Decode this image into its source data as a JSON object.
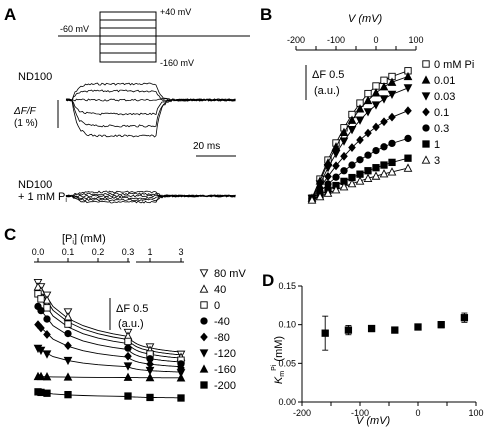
{
  "panels": {
    "A": {
      "letter": "A",
      "protocol": {
        "hold_label": "-60 mV",
        "top_label": "+40 mV",
        "bottom_label": "-160 mV",
        "steps_mv": [
          40,
          0,
          -40,
          -80,
          -120,
          -160
        ]
      },
      "trace1_label": "ND100",
      "trace2_label_line1": "ND100",
      "trace2_label_line2": "+ 1 mM P",
      "trace2_label_sub": "i",
      "yscale_label_line1": "ΔF/F",
      "yscale_label_line2": "(1 %)",
      "time_scale_label": "20 ms"
    },
    "B": {
      "letter": "B",
      "xlabel": "V (mV)",
      "xticks": [
        "-200",
        "-100",
        "0",
        "100"
      ],
      "scale_label_line1": "ΔF 0.5",
      "scale_label_line2": "(a.u.)"
    },
    "C": {
      "letter": "C",
      "xlabel": "[P",
      "xlabel_sub": "i",
      "xlabel_end": "] (mM)",
      "xticks_left": [
        "0.0",
        "0.1",
        "0.2",
        "0.3"
      ],
      "xticks_right": [
        "1",
        "3"
      ],
      "scale_label_line1": "ΔF 0.5",
      "scale_label_line2": "(a.u.)"
    },
    "D": {
      "letter": "D",
      "ylabel_main": "K",
      "ylabel_sub": "m",
      "ylabel_sup": "Pi",
      "ylabel_end": " (mM)",
      "xlabel": "V (mV)",
      "yticks": [
        "0.00",
        "0.05",
        "0.10",
        "0.15"
      ],
      "xticks": [
        "-200",
        "-100",
        "0",
        "100"
      ]
    }
  },
  "chart_data": [
    {
      "panel": "B",
      "type": "line",
      "xlabel": "V (mV)",
      "xlim": [
        -200,
        100
      ],
      "series": [
        {
          "name": "0 mM Pi",
          "marker": "open-square",
          "x": [
            -160,
            -140,
            -120,
            -100,
            -80,
            -60,
            -40,
            -20,
            0,
            20,
            40,
            80
          ],
          "y": [
            0.05,
            0.55,
            1.05,
            1.5,
            1.9,
            2.25,
            2.55,
            2.8,
            3.0,
            3.15,
            3.25,
            3.4
          ]
        },
        {
          "name": "0.01",
          "marker": "filled-triangle-up",
          "x": [
            -160,
            -140,
            -120,
            -100,
            -80,
            -60,
            -40,
            -20,
            0,
            20,
            40,
            80
          ],
          "y": [
            0.05,
            0.5,
            0.98,
            1.4,
            1.78,
            2.1,
            2.4,
            2.62,
            2.82,
            2.98,
            3.1,
            3.25
          ]
        },
        {
          "name": "0.03",
          "marker": "filled-triangle-down",
          "x": [
            -160,
            -140,
            -120,
            -100,
            -80,
            -60,
            -40,
            -20,
            0,
            20,
            40,
            80
          ],
          "y": [
            0.04,
            0.42,
            0.85,
            1.22,
            1.55,
            1.85,
            2.1,
            2.32,
            2.5,
            2.66,
            2.78,
            2.95
          ]
        },
        {
          "name": "0.1",
          "marker": "filled-diamond",
          "x": [
            -160,
            -140,
            -120,
            -100,
            -80,
            -60,
            -40,
            -20,
            0,
            20,
            40,
            80
          ],
          "y": [
            0.03,
            0.32,
            0.62,
            0.9,
            1.15,
            1.38,
            1.58,
            1.76,
            1.92,
            2.06,
            2.18,
            2.35
          ]
        },
        {
          "name": "0.3",
          "marker": "filled-circle",
          "x": [
            -160,
            -140,
            -120,
            -100,
            -80,
            -60,
            -40,
            -20,
            0,
            20,
            40,
            80
          ],
          "y": [
            0.02,
            0.22,
            0.42,
            0.6,
            0.77,
            0.92,
            1.06,
            1.18,
            1.3,
            1.4,
            1.49,
            1.62
          ]
        },
        {
          "name": "1",
          "marker": "filled-square",
          "x": [
            -160,
            -140,
            -120,
            -100,
            -80,
            -60,
            -40,
            -20,
            0,
            20,
            40,
            80
          ],
          "y": [
            0.01,
            0.13,
            0.26,
            0.38,
            0.49,
            0.59,
            0.68,
            0.77,
            0.85,
            0.92,
            0.99,
            1.1
          ]
        },
        {
          "name": "3",
          "marker": "open-triangle-up",
          "x": [
            -160,
            -140,
            -120,
            -100,
            -80,
            -60,
            -40,
            -20,
            0,
            20,
            40,
            80
          ],
          "y": [
            0.0,
            0.09,
            0.18,
            0.27,
            0.35,
            0.43,
            0.5,
            0.57,
            0.63,
            0.69,
            0.74,
            0.84
          ]
        }
      ]
    },
    {
      "panel": "C",
      "type": "line",
      "xlabel": "[Pi] (mM)",
      "x": [
        0,
        0.01,
        0.03,
        0.1,
        0.3,
        1,
        3
      ],
      "series": [
        {
          "name": "80 mV",
          "marker": "open-triangle-down",
          "y": [
            3.4,
            3.25,
            2.95,
            2.35,
            1.62,
            1.1,
            0.84
          ]
        },
        {
          "name": "40",
          "marker": "open-triangle-up",
          "y": [
            3.25,
            3.1,
            2.78,
            2.18,
            1.49,
            0.99,
            0.74
          ]
        },
        {
          "name": "0",
          "marker": "open-square",
          "y": [
            3.0,
            2.82,
            2.5,
            1.92,
            1.3,
            0.85,
            0.63
          ]
        },
        {
          "name": "-40",
          "marker": "filled-circle",
          "y": [
            2.55,
            2.4,
            2.1,
            1.58,
            1.06,
            0.68,
            0.5
          ]
        },
        {
          "name": "-80",
          "marker": "filled-diamond",
          "y": [
            1.9,
            1.78,
            1.55,
            1.15,
            0.77,
            0.49,
            0.35
          ]
        },
        {
          "name": "-120",
          "marker": "filled-triangle-down",
          "y": [
            1.05,
            0.98,
            0.85,
            0.62,
            0.42,
            0.26,
            0.18
          ]
        },
        {
          "name": "-160",
          "marker": "filled-triangle-up",
          "y": [
            0.05,
            0.05,
            0.04,
            0.03,
            0.02,
            0.01,
            0.0
          ]
        },
        {
          "name": "-200",
          "marker": "filled-square",
          "y": [
            -0.5,
            -0.52,
            -0.55,
            -0.6,
            -0.65,
            -0.7,
            -0.72
          ]
        }
      ]
    },
    {
      "panel": "D",
      "type": "scatter",
      "xlabel": "V (mV)",
      "ylabel": "Km Pi (mM)",
      "xlim": [
        -200,
        100
      ],
      "ylim": [
        0,
        0.15
      ],
      "x": [
        -160,
        -120,
        -80,
        -40,
        0,
        40,
        80
      ],
      "y": [
        0.089,
        0.093,
        0.095,
        0.093,
        0.097,
        0.1,
        0.109
      ],
      "err": [
        0.022,
        0.006,
        0.004,
        0.003,
        0.003,
        0.004,
        0.006
      ]
    }
  ]
}
